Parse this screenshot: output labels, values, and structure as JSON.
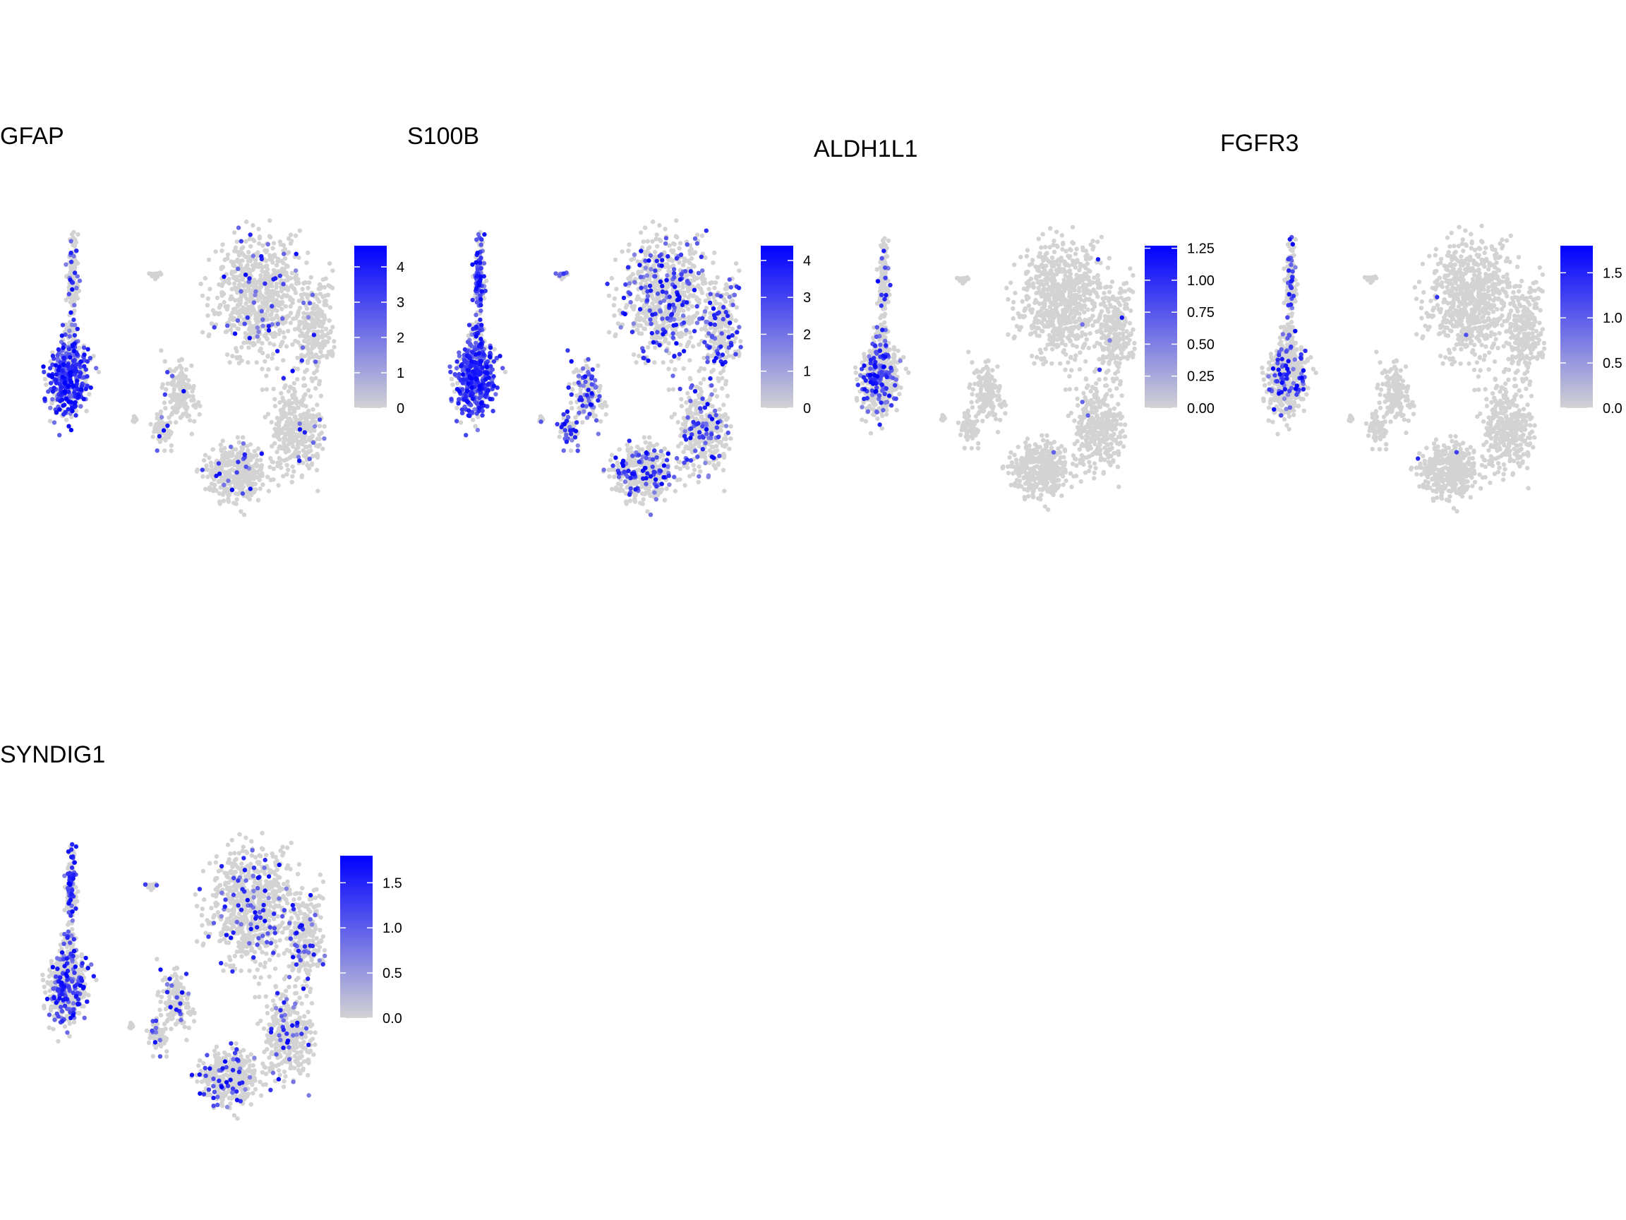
{
  "chart_data": [
    {
      "type": "scatter",
      "title": "GFAP",
      "legend": {
        "placement": "right",
        "breaks": [
          0,
          1,
          2,
          3,
          4
        ],
        "labels": [
          "0",
          "1",
          "2",
          "3",
          "4"
        ],
        "limits": [
          0,
          4.6
        ]
      },
      "colors": {
        "low": "#d3d3d3",
        "high": "#0000ff"
      },
      "grid": false,
      "expression_pattern": {
        "left_lower": 0.62,
        "left_upper": 0.18,
        "right_main": 0.05,
        "right_small": 0.04
      }
    },
    {
      "type": "scatter",
      "title": "S100B",
      "legend": {
        "placement": "right",
        "breaks": [
          0,
          1,
          2,
          3,
          4
        ],
        "labels": [
          "0",
          "1",
          "2",
          "3",
          "4"
        ],
        "limits": [
          0,
          4.4
        ]
      },
      "colors": {
        "low": "#d3d3d3",
        "high": "#0000ff"
      },
      "grid": false,
      "expression_pattern": {
        "left_lower": 0.72,
        "left_upper": 0.65,
        "right_main": 0.22,
        "right_small": 0.3
      }
    },
    {
      "type": "scatter",
      "title": "ALDH1L1",
      "legend": {
        "placement": "right",
        "breaks": [
          0,
          0.25,
          0.5,
          0.75,
          1.0,
          1.25
        ],
        "labels": [
          "0.00",
          "0.25",
          "0.50",
          "0.75",
          "1.00",
          "1.25"
        ],
        "limits": [
          0,
          1.27
        ]
      },
      "colors": {
        "low": "#d3d3d3",
        "high": "#0000ff"
      },
      "grid": false,
      "expression_pattern": {
        "left_lower": 0.22,
        "left_upper": 0.1,
        "right_main": 0.004,
        "right_small": 0.0
      }
    },
    {
      "type": "scatter",
      "title": "FGFR3",
      "legend": {
        "placement": "right",
        "breaks": [
          0,
          0.5,
          1.0,
          1.5
        ],
        "labels": [
          "0.0",
          "0.5",
          "1.0",
          "1.5"
        ],
        "limits": [
          0,
          1.8
        ]
      },
      "colors": {
        "low": "#d3d3d3",
        "high": "#0000ff"
      },
      "grid": false,
      "expression_pattern": {
        "left_lower": 0.14,
        "left_upper": 0.22,
        "right_main": 0.004,
        "right_small": 0.0
      }
    },
    {
      "type": "scatter",
      "title": "SYNDIG1",
      "legend": {
        "placement": "right",
        "breaks": [
          0,
          0.5,
          1.0,
          1.5
        ],
        "labels": [
          "0.0",
          "0.5",
          "1.0",
          "1.5"
        ],
        "limits": [
          0,
          1.8
        ]
      },
      "colors": {
        "low": "#d3d3d3",
        "high": "#0000ff"
      },
      "grid": false,
      "expression_pattern": {
        "left_lower": 0.3,
        "left_upper": 0.45,
        "right_main": 0.12,
        "right_small": 0.14
      }
    }
  ]
}
